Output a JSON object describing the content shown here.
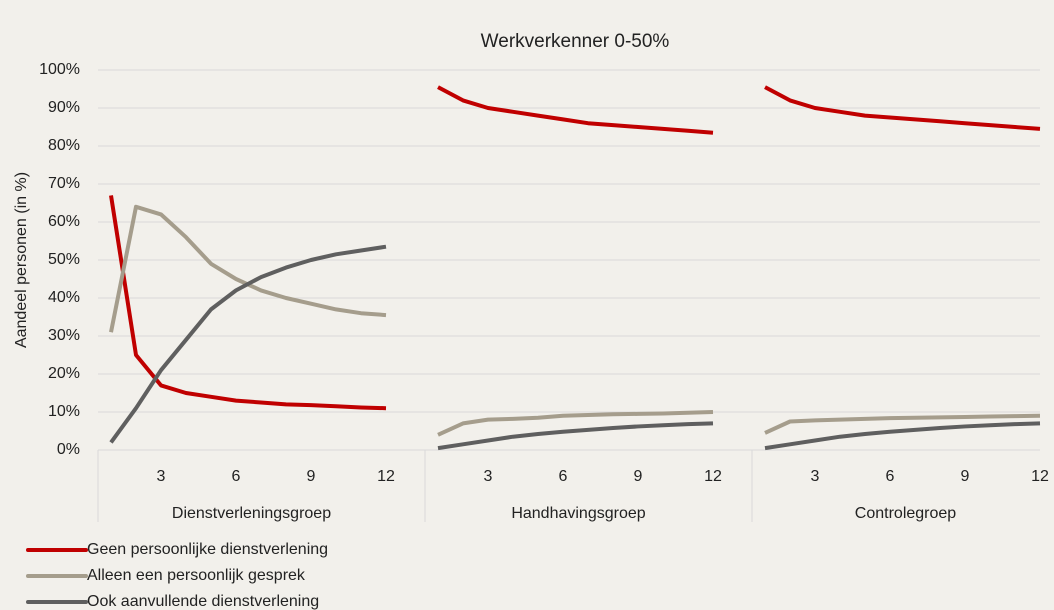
{
  "chart_data": {
    "type": "line",
    "title": "Werkverkenner 0-50%",
    "ylabel": "Aandeel personen (in %)",
    "groups": [
      "Dienstverleningsgroep",
      "Handhavingsgroep",
      "Controlegroep"
    ],
    "categories": [
      null,
      null,
      "3",
      null,
      null,
      "6",
      null,
      null,
      "9",
      null,
      null,
      "12"
    ],
    "ylim": [
      0,
      100
    ],
    "yticks": [
      {
        "value": 0,
        "label": "0%"
      },
      {
        "value": 10,
        "label": "10%"
      },
      {
        "value": 20,
        "label": "20%"
      },
      {
        "value": 30,
        "label": "30%"
      },
      {
        "value": 40,
        "label": "40%"
      },
      {
        "value": 50,
        "label": "50%"
      },
      {
        "value": 60,
        "label": "60%"
      },
      {
        "value": 70,
        "label": "70%"
      },
      {
        "value": 80,
        "label": "80%"
      },
      {
        "value": 90,
        "label": "90%"
      },
      {
        "value": 100,
        "label": "100%"
      }
    ],
    "grid": true,
    "legend": "bottom-left",
    "series": [
      {
        "name": "Geen persoonlijke dienstverlening",
        "color": "#c00000",
        "values": [
          [
            67,
            25,
            17,
            15,
            14,
            13,
            12.5,
            12,
            11.8,
            11.5,
            11.2,
            11
          ],
          [
            95.5,
            92,
            90,
            89,
            88,
            87,
            86,
            85.5,
            85,
            84.5,
            84,
            83.5
          ],
          [
            95.5,
            92,
            90,
            89,
            88,
            87.5,
            87,
            86.5,
            86,
            85.5,
            85,
            84.5
          ]
        ]
      },
      {
        "name": "Alleen een persoonlijk gesprek",
        "color": "#a59d8c",
        "values": [
          [
            31,
            64,
            62,
            56,
            49,
            45,
            42,
            40,
            38.5,
            37,
            36,
            35.5
          ],
          [
            4,
            7,
            8,
            8.2,
            8.5,
            9,
            9.2,
            9.4,
            9.5,
            9.6,
            9.8,
            10
          ],
          [
            4.5,
            7.5,
            7.8,
            8,
            8.2,
            8.4,
            8.5,
            8.6,
            8.7,
            8.8,
            8.9,
            9
          ]
        ]
      },
      {
        "name": "Ook aanvullende dienstverlening",
        "color": "#5f5f5f",
        "values": [
          [
            2,
            11,
            21,
            29,
            37,
            42,
            45.5,
            48,
            50,
            51.5,
            52.5,
            53.5
          ],
          [
            0.5,
            1.5,
            2.5,
            3.5,
            4.2,
            4.8,
            5.3,
            5.8,
            6.2,
            6.5,
            6.8,
            7
          ],
          [
            0.5,
            1.5,
            2.5,
            3.5,
            4.2,
            4.8,
            5.3,
            5.8,
            6.2,
            6.5,
            6.8,
            7
          ]
        ]
      }
    ]
  }
}
